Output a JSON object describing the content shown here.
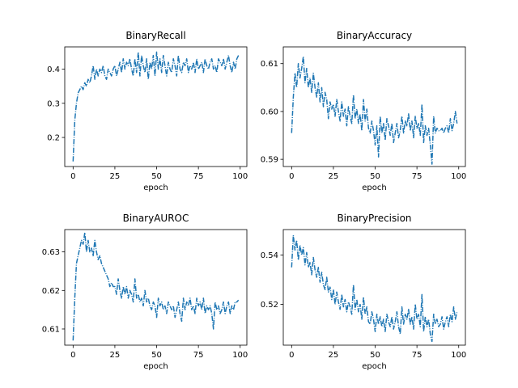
{
  "chart_data": [
    {
      "type": "line",
      "title": "BinaryRecall",
      "xlabel": "epoch",
      "ylabel": "",
      "xlim": [
        -5,
        104
      ],
      "ylim": [
        0.115,
        0.465
      ],
      "xticks": [
        0,
        25,
        50,
        75,
        100
      ],
      "xtick_labels": [
        "0",
        "25",
        "50",
        "75",
        "100"
      ],
      "yticks": [
        0.2,
        0.3,
        0.4
      ],
      "ytick_labels": [
        "0.2",
        "0.3",
        "0.4"
      ],
      "grid": false,
      "line_style": "dash-dot",
      "color": "#1f77b4",
      "series": [
        {
          "x": [
            0,
            1,
            2,
            3,
            4,
            5,
            6,
            7,
            8,
            9,
            10,
            11,
            12,
            13,
            14,
            15,
            16,
            17,
            18,
            19,
            20,
            21,
            22,
            23,
            24,
            25,
            26,
            27,
            28,
            29,
            30,
            31,
            32,
            33,
            34,
            35,
            36,
            37,
            38,
            39,
            40,
            41,
            42,
            43,
            44,
            45,
            46,
            47,
            48,
            49,
            50,
            51,
            52,
            53,
            54,
            55,
            56,
            57,
            58,
            59,
            60,
            61,
            62,
            63,
            64,
            65,
            66,
            67,
            68,
            69,
            70,
            71,
            72,
            73,
            74,
            75,
            76,
            77,
            78,
            79,
            80,
            81,
            82,
            83,
            84,
            85,
            86,
            87,
            88,
            89,
            90,
            91,
            92,
            93,
            94,
            95,
            96,
            97,
            98,
            99
          ],
          "y": [
            0.13,
            0.25,
            0.3,
            0.33,
            0.34,
            0.35,
            0.34,
            0.36,
            0.35,
            0.37,
            0.36,
            0.38,
            0.41,
            0.37,
            0.4,
            0.38,
            0.4,
            0.39,
            0.41,
            0.38,
            0.37,
            0.4,
            0.39,
            0.38,
            0.4,
            0.41,
            0.38,
            0.4,
            0.42,
            0.39,
            0.43,
            0.4,
            0.42,
            0.41,
            0.43,
            0.4,
            0.38,
            0.43,
            0.39,
            0.45,
            0.38,
            0.44,
            0.41,
            0.39,
            0.43,
            0.37,
            0.42,
            0.4,
            0.44,
            0.38,
            0.45,
            0.4,
            0.43,
            0.39,
            0.44,
            0.41,
            0.38,
            0.42,
            0.4,
            0.39,
            0.43,
            0.41,
            0.38,
            0.44,
            0.4,
            0.39,
            0.42,
            0.41,
            0.43,
            0.39,
            0.41,
            0.4,
            0.42,
            0.39,
            0.43,
            0.4,
            0.41,
            0.42,
            0.39,
            0.43,
            0.41,
            0.4,
            0.42,
            0.43,
            0.4,
            0.41,
            0.39,
            0.43,
            0.42,
            0.41,
            0.43,
            0.4,
            0.42,
            0.44,
            0.41,
            0.39,
            0.42,
            0.4,
            0.43,
            0.44
          ]
        }
      ]
    },
    {
      "type": "line",
      "title": "BinaryAccuracy",
      "xlabel": "epoch",
      "ylabel": "",
      "xlim": [
        -5,
        104
      ],
      "ylim": [
        0.5885,
        0.6135
      ],
      "xticks": [
        0,
        25,
        50,
        75,
        100
      ],
      "xtick_labels": [
        "0",
        "25",
        "50",
        "75",
        "100"
      ],
      "yticks": [
        0.59,
        0.6,
        0.61
      ],
      "ytick_labels": [
        "0.59",
        "0.60",
        "0.61"
      ],
      "grid": false,
      "line_style": "dash-dot",
      "color": "#1f77b4",
      "series": [
        {
          "x": [
            0,
            1,
            2,
            3,
            4,
            5,
            6,
            7,
            8,
            9,
            10,
            11,
            12,
            13,
            14,
            15,
            16,
            17,
            18,
            19,
            20,
            21,
            22,
            23,
            24,
            25,
            26,
            27,
            28,
            29,
            30,
            31,
            32,
            33,
            34,
            35,
            36,
            37,
            38,
            39,
            40,
            41,
            42,
            43,
            44,
            45,
            46,
            47,
            48,
            49,
            50,
            51,
            52,
            53,
            54,
            55,
            56,
            57,
            58,
            59,
            60,
            61,
            62,
            63,
            64,
            65,
            66,
            67,
            68,
            69,
            70,
            71,
            72,
            73,
            74,
            75,
            76,
            77,
            78,
            79,
            80,
            81,
            82,
            83,
            84,
            85,
            86,
            87,
            88,
            89,
            90,
            91,
            92,
            93,
            94,
            95,
            96,
            97,
            98,
            99
          ],
          "y": [
            0.5955,
            0.603,
            0.608,
            0.605,
            0.61,
            0.607,
            0.609,
            0.6115,
            0.606,
            0.609,
            0.605,
            0.607,
            0.604,
            0.608,
            0.605,
            0.603,
            0.606,
            0.602,
            0.605,
            0.601,
            0.604,
            0.6025,
            0.5985,
            0.602,
            0.6005,
            0.6015,
            0.599,
            0.6025,
            0.6,
            0.598,
            0.602,
            0.599,
            0.6005,
            0.597,
            0.601,
            0.599,
            0.5975,
            0.6035,
            0.5985,
            0.6005,
            0.5975,
            0.5995,
            0.596,
            0.6025,
            0.598,
            0.6005,
            0.5965,
            0.5955,
            0.598,
            0.596,
            0.593,
            0.597,
            0.5905,
            0.599,
            0.5955,
            0.5975,
            0.594,
            0.5985,
            0.597,
            0.595,
            0.5975,
            0.5935,
            0.5955,
            0.5975,
            0.5945,
            0.596,
            0.599,
            0.5955,
            0.598,
            0.597,
            0.5995,
            0.596,
            0.598,
            0.5945,
            0.599,
            0.5965,
            0.5975,
            0.595,
            0.6015,
            0.5935,
            0.597,
            0.595,
            0.5965,
            0.593,
            0.589,
            0.599,
            0.5955,
            0.5965,
            0.596,
            0.596,
            0.5965,
            0.5955,
            0.5965,
            0.597,
            0.5955,
            0.5985,
            0.596,
            0.5975,
            0.6,
            0.5975
          ]
        }
      ]
    },
    {
      "type": "line",
      "title": "BinaryAUROC",
      "xlabel": "epoch",
      "ylabel": "",
      "xlim": [
        -5,
        104
      ],
      "ylim": [
        0.6058,
        0.6358
      ],
      "xticks": [
        0,
        25,
        50,
        75,
        100
      ],
      "xtick_labels": [
        "0",
        "25",
        "50",
        "75",
        "100"
      ],
      "yticks": [
        0.61,
        0.62,
        0.63
      ],
      "ytick_labels": [
        "0.61",
        "0.62",
        "0.63"
      ],
      "grid": false,
      "line_style": "dash-dot",
      "color": "#1f77b4",
      "series": [
        {
          "x": [
            0,
            1,
            2,
            3,
            4,
            5,
            6,
            7,
            8,
            9,
            10,
            11,
            12,
            13,
            14,
            15,
            16,
            17,
            18,
            19,
            20,
            21,
            22,
            23,
            24,
            25,
            26,
            27,
            28,
            29,
            30,
            31,
            32,
            33,
            34,
            35,
            36,
            37,
            38,
            39,
            40,
            41,
            42,
            43,
            44,
            45,
            46,
            47,
            48,
            49,
            50,
            51,
            52,
            53,
            54,
            55,
            56,
            57,
            58,
            59,
            60,
            61,
            62,
            63,
            64,
            65,
            66,
            67,
            68,
            69,
            70,
            71,
            72,
            73,
            74,
            75,
            76,
            77,
            78,
            79,
            80,
            81,
            82,
            83,
            84,
            85,
            86,
            87,
            88,
            89,
            90,
            91,
            92,
            93,
            94,
            95,
            96,
            97,
            98,
            99
          ],
          "y": [
            0.607,
            0.618,
            0.627,
            0.629,
            0.631,
            0.633,
            0.632,
            0.635,
            0.63,
            0.633,
            0.63,
            0.631,
            0.629,
            0.633,
            0.63,
            0.628,
            0.629,
            0.627,
            0.626,
            0.625,
            0.624,
            0.623,
            0.621,
            0.622,
            0.621,
            0.621,
            0.619,
            0.623,
            0.62,
            0.618,
            0.621,
            0.619,
            0.621,
            0.618,
            0.62,
            0.619,
            0.617,
            0.623,
            0.618,
            0.619,
            0.617,
            0.618,
            0.616,
            0.62,
            0.617,
            0.618,
            0.616,
            0.615,
            0.617,
            0.616,
            0.613,
            0.618,
            0.616,
            0.617,
            0.615,
            0.616,
            0.614,
            0.617,
            0.616,
            0.615,
            0.616,
            0.613,
            0.615,
            0.617,
            0.614,
            0.612,
            0.618,
            0.615,
            0.617,
            0.616,
            0.618,
            0.615,
            0.616,
            0.614,
            0.618,
            0.616,
            0.617,
            0.615,
            0.618,
            0.614,
            0.616,
            0.615,
            0.616,
            0.614,
            0.61,
            0.617,
            0.615,
            0.616,
            0.614,
            0.615,
            0.617,
            0.614,
            0.616,
            0.617,
            0.614,
            0.616,
            0.615,
            0.617,
            0.617,
            0.6175
          ]
        }
      ]
    },
    {
      "type": "line",
      "title": "BinaryPrecision",
      "xlabel": "epoch",
      "ylabel": "",
      "xlim": [
        -5,
        104
      ],
      "ylim": [
        0.5035,
        0.5503
      ],
      "xticks": [
        0,
        25,
        50,
        75,
        100
      ],
      "xtick_labels": [
        "0",
        "25",
        "50",
        "75",
        "100"
      ],
      "yticks": [
        0.52,
        0.54
      ],
      "ytick_labels": [
        "0.52",
        "0.54"
      ],
      "grid": false,
      "line_style": "dash-dot",
      "color": "#1f77b4",
      "series": [
        {
          "x": [
            0,
            1,
            2,
            3,
            4,
            5,
            6,
            7,
            8,
            9,
            10,
            11,
            12,
            13,
            14,
            15,
            16,
            17,
            18,
            19,
            20,
            21,
            22,
            23,
            24,
            25,
            26,
            27,
            28,
            29,
            30,
            31,
            32,
            33,
            34,
            35,
            36,
            37,
            38,
            39,
            40,
            41,
            42,
            43,
            44,
            45,
            46,
            47,
            48,
            49,
            50,
            51,
            52,
            53,
            54,
            55,
            56,
            57,
            58,
            59,
            60,
            61,
            62,
            63,
            64,
            65,
            66,
            67,
            68,
            69,
            70,
            71,
            72,
            73,
            74,
            75,
            76,
            77,
            78,
            79,
            80,
            81,
            82,
            83,
            84,
            85,
            86,
            87,
            88,
            89,
            90,
            91,
            92,
            93,
            94,
            95,
            96,
            97,
            98,
            99
          ],
          "y": [
            0.535,
            0.548,
            0.542,
            0.546,
            0.538,
            0.544,
            0.54,
            0.543,
            0.536,
            0.541,
            0.535,
            0.537,
            0.532,
            0.539,
            0.534,
            0.531,
            0.535,
            0.529,
            0.533,
            0.528,
            0.526,
            0.531,
            0.525,
            0.527,
            0.522,
            0.526,
            0.52,
            0.525,
            0.521,
            0.518,
            0.524,
            0.519,
            0.522,
            0.517,
            0.521,
            0.519,
            0.516,
            0.528,
            0.518,
            0.522,
            0.517,
            0.52,
            0.514,
            0.523,
            0.516,
            0.519,
            0.513,
            0.512,
            0.517,
            0.514,
            0.509,
            0.516,
            0.512,
            0.515,
            0.511,
            0.514,
            0.509,
            0.516,
            0.513,
            0.511,
            0.515,
            0.51,
            0.513,
            0.517,
            0.511,
            0.508,
            0.519,
            0.512,
            0.516,
            0.514,
            0.518,
            0.512,
            0.515,
            0.51,
            0.52,
            0.514,
            0.516,
            0.511,
            0.524,
            0.509,
            0.515,
            0.511,
            0.514,
            0.508,
            0.505,
            0.516,
            0.512,
            0.514,
            0.511,
            0.512,
            0.515,
            0.51,
            0.513,
            0.515,
            0.511,
            0.516,
            0.513,
            0.519,
            0.514,
            0.517
          ]
        }
      ]
    }
  ]
}
